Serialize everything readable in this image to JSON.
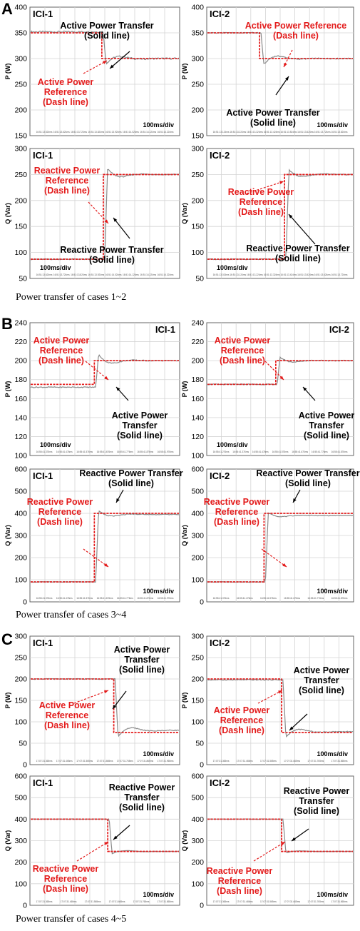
{
  "sections": [
    {
      "letter": "A",
      "caption": "Power transfer of cases 1~2"
    },
    {
      "letter": "B",
      "caption": "Power transfer of cases 3~4"
    },
    {
      "letter": "C",
      "caption": "Power transfer of cases 4~5"
    }
  ],
  "colors": {
    "reference": "#e31b1b",
    "transfer": "#8a8a8a",
    "grid": "#d4d4d4",
    "axis": "#000000"
  },
  "chart_data": [
    {
      "type": "line",
      "panel": "A-top-left",
      "id_label": "ICI-1",
      "ylabel": "P (W)",
      "ylim": [
        150,
        400
      ],
      "yticks": [
        150,
        200,
        250,
        300,
        350,
        400
      ],
      "time_division": "100ms/div",
      "x_tick_labels": [
        "16:51:13.524ms",
        "16:51:13.624ms",
        "16:51:13.724ms",
        "16:51:13.824ms",
        "16:51:13.924ms",
        "16:51:14.024ms",
        "16:51:14.124ms",
        "16:51:14.224ms"
      ],
      "step_at": 0.48,
      "reference": {
        "before": 350,
        "after": 300
      },
      "transfer": {
        "before": 352,
        "after": 300,
        "overshoot": 283,
        "noise": 3
      },
      "annotations": [
        {
          "lines": [
            "Active Power Transfer",
            "(Solid line)"
          ],
          "color": "black"
        },
        {
          "lines": [
            "Active Power",
            "Reference",
            "(Dash line)"
          ],
          "color": "red"
        }
      ]
    },
    {
      "type": "line",
      "panel": "A-top-right",
      "id_label": "ICI-2",
      "ylabel": "P (W)",
      "ylim": [
        150,
        400
      ],
      "yticks": [
        150,
        200,
        250,
        300,
        350,
        400
      ],
      "time_division": "100ms/div",
      "x_tick_labels": [
        "16:51:13.124ms",
        "16:51:13.224ms",
        "16:51:13.324ms",
        "16:51:13.424ms",
        "16:51:13.524ms",
        "16:51:13.624ms",
        "16:51:13.724ms",
        "16:51:13.824ms"
      ],
      "step_at": 0.36,
      "reference": {
        "before": 350,
        "after": 300
      },
      "transfer": {
        "before": 350,
        "after": 300,
        "overshoot": 280,
        "noise": 2
      },
      "annotations": [
        {
          "lines": [
            "Active Power Reference",
            "(Dash line)"
          ],
          "color": "red"
        },
        {
          "lines": [
            "Active Power Transfer",
            "(Solid line)"
          ],
          "color": "black"
        }
      ]
    },
    {
      "type": "line",
      "panel": "A-bottom-left",
      "id_label": "ICI-1",
      "ylabel": "Q (Var)",
      "ylim": [
        50,
        300
      ],
      "yticks": [
        50,
        100,
        150,
        200,
        250,
        300
      ],
      "time_division": "100ms/div",
      "x_tick_labels": [
        "16:51:13.624ms",
        "16:51:13.724ms",
        "16:51:13.824ms",
        "16:51:13.924ms",
        "16:51:14.024ms",
        "16:51:14.124ms",
        "16:51:14.224ms",
        "16:51:14.324ms"
      ],
      "step_at": 0.49,
      "reference": {
        "before": 87,
        "after": 250
      },
      "transfer": {
        "before": 87,
        "after": 250,
        "overshoot": 268,
        "noise": 2
      },
      "annotations": [
        {
          "lines": [
            "Reactive Power",
            "Reference",
            "(Dash line)"
          ],
          "color": "red"
        },
        {
          "lines": [
            "Reactive Power Transfer",
            "(Solid line)"
          ],
          "color": "black"
        }
      ]
    },
    {
      "type": "line",
      "panel": "A-bottom-right",
      "id_label": "ICI-2",
      "ylabel": "Q (Var)",
      "ylim": [
        50,
        300
      ],
      "yticks": [
        50,
        100,
        150,
        200,
        250,
        300
      ],
      "time_division": "100ms/div",
      "x_tick_labels": [
        "16:51:13.024ms",
        "16:51:13.124ms",
        "16:51:13.224ms",
        "16:51:13.324ms",
        "16:51:13.424ms",
        "16:51:13.524ms",
        "16:51:13.624ms",
        "16:51:13.724ms"
      ],
      "step_at": 0.53,
      "reference": {
        "before": 87,
        "after": 250
      },
      "transfer": {
        "before": 87,
        "after": 250,
        "overshoot": 265,
        "noise": 2
      },
      "annotations": [
        {
          "lines": [
            "Reactive Power",
            "Reference",
            "(Dash line)"
          ],
          "color": "red"
        },
        {
          "lines": [
            "Reactive Power Transfer",
            "(Solid line)"
          ],
          "color": "black"
        }
      ]
    },
    {
      "type": "line",
      "panel": "B-top-left",
      "id_label": "ICI-1",
      "ylabel": "P (W)",
      "ylim": [
        100,
        240
      ],
      "yticks": [
        100,
        120,
        140,
        160,
        180,
        200,
        220,
        240
      ],
      "time_division": "100ms/div",
      "x_tick_labels": [
        "16:55:41.376ms",
        "16:55:41.476ms",
        "16:55:41.576ms",
        "16:55:41.676ms",
        "16:55:41.776ms",
        "16:55:41.876ms",
        "16:55:41.976ms"
      ],
      "step_at": 0.43,
      "reference": {
        "before": 175,
        "after": 200
      },
      "transfer": {
        "before": 172,
        "after": 200,
        "overshoot": 211,
        "noise": 1
      },
      "annotations": [
        {
          "lines": [
            "Active Power",
            "Reference",
            "(Dash line)"
          ],
          "color": "red"
        },
        {
          "lines": [
            "Active Power",
            "Transfer",
            "(Solid line)"
          ],
          "color": "black"
        }
      ]
    },
    {
      "type": "line",
      "panel": "B-top-right",
      "id_label": "ICI-2",
      "ylabel": "P (W)",
      "ylim": [
        100,
        240
      ],
      "yticks": [
        100,
        120,
        140,
        160,
        180,
        200,
        220,
        240
      ],
      "time_division": "100ms/div",
      "x_tick_labels": [
        "16:55:41.276ms",
        "16:55:41.376ms",
        "16:55:41.476ms",
        "16:55:41.576ms",
        "16:55:41.676ms",
        "16:55:41.776ms",
        "16:55:41.876ms"
      ],
      "step_at": 0.47,
      "reference": {
        "before": 175,
        "after": 200
      },
      "transfer": {
        "before": 175,
        "after": 200,
        "overshoot": 206,
        "noise": 1
      },
      "annotations": [
        {
          "lines": [
            "Active Power",
            "Reference",
            "(Dash line)"
          ],
          "color": "red"
        },
        {
          "lines": [
            "Active Power",
            "Transfer",
            "(Solid line)"
          ],
          "color": "black"
        }
      ]
    },
    {
      "type": "line",
      "panel": "B-bottom-left",
      "id_label": "ICI-1",
      "ylabel": "Q (Var)",
      "ylim": [
        0,
        600
      ],
      "yticks": [
        0,
        100,
        200,
        300,
        400,
        500,
        600
      ],
      "time_division": "100ms/div",
      "x_tick_labels": [
        "16:55:41.376ms",
        "16:55:41.476ms",
        "16:55:41.576ms",
        "16:55:41.676ms",
        "16:55:41.776ms",
        "16:55:41.876ms",
        "16:55:41.976ms"
      ],
      "step_at": 0.43,
      "reference": {
        "before": 90,
        "after": 400
      },
      "transfer": {
        "before": 90,
        "after": 395,
        "overshoot": 425,
        "noise": 3
      },
      "annotations": [
        {
          "lines": [
            "Reactive Power Transfer",
            "(Solid line)"
          ],
          "color": "black"
        },
        {
          "lines": [
            "Reactive Power",
            "Reference",
            "(Dash line)"
          ],
          "color": "red"
        }
      ]
    },
    {
      "type": "line",
      "panel": "B-bottom-right",
      "id_label": "ICI-2",
      "ylabel": "Q (Var)",
      "ylim": [
        0,
        600
      ],
      "yticks": [
        0,
        100,
        200,
        300,
        400,
        500,
        600
      ],
      "time_division": "100ms/div",
      "x_tick_labels": [
        "16:55:41.376ms",
        "16:55:41.476ms",
        "16:55:41.576ms",
        "16:55:41.676ms",
        "16:55:41.776ms",
        "16:55:41.876ms"
      ],
      "step_at": 0.39,
      "reference": {
        "before": 90,
        "after": 400
      },
      "transfer": {
        "before": 90,
        "after": 390,
        "overshoot": 410,
        "noise": 3
      },
      "annotations": [
        {
          "lines": [
            "Reactive Power Transfer",
            "(Solid line)"
          ],
          "color": "black"
        },
        {
          "lines": [
            "Reactive Power",
            "Reference",
            "(Dash line)"
          ],
          "color": "red"
        }
      ]
    },
    {
      "type": "line",
      "panel": "C-top-left",
      "id_label": "ICI-1",
      "ylabel": "P (W)",
      "ylim": [
        0,
        300
      ],
      "yticks": [
        0,
        50,
        100,
        150,
        200,
        250,
        300
      ],
      "time_division": "100ms/div",
      "x_tick_labels": [
        "17:07:31.365ms",
        "17:07:31.465ms",
        "17:07:31.565ms",
        "17:07:31.665ms",
        "17:07:31.765ms",
        "17:07:31.865ms",
        "17:07:31.965ms"
      ],
      "step_at": 0.56,
      "reference": {
        "before": 200,
        "after": 75
      },
      "transfer": {
        "before": 200,
        "after": 80,
        "overshoot": 55,
        "noise": 2
      },
      "annotations": [
        {
          "lines": [
            "Active Power",
            "Transfer",
            "(Solid line)"
          ],
          "color": "black"
        },
        {
          "lines": [
            "Active Power",
            "Reference",
            "(Dash line)"
          ],
          "color": "red"
        }
      ]
    },
    {
      "type": "line",
      "panel": "C-top-right",
      "id_label": "ICI-2",
      "ylabel": "P (W)",
      "ylim": [
        0,
        300
      ],
      "yticks": [
        0,
        50,
        100,
        150,
        200,
        250,
        300
      ],
      "time_division": "100ms/div",
      "x_tick_labels": [
        "17:07:31.365ms",
        "17:07:31.465ms",
        "17:07:31.565ms",
        "17:07:31.665ms",
        "17:07:31.765ms",
        "17:07:31.865ms"
      ],
      "step_at": 0.51,
      "reference": {
        "before": 200,
        "after": 75
      },
      "transfer": {
        "before": 198,
        "after": 77,
        "overshoot": 55,
        "noise": 2
      },
      "annotations": [
        {
          "lines": [
            "Active Power",
            "Transfer",
            "(Solid line)"
          ],
          "color": "black"
        },
        {
          "lines": [
            "Active Power",
            "Reference",
            "(Dash line)"
          ],
          "color": "red"
        }
      ]
    },
    {
      "type": "line",
      "panel": "C-bottom-left",
      "id_label": "ICI-1",
      "ylabel": "Q (Var)",
      "ylim": [
        0,
        600
      ],
      "yticks": [
        0,
        100,
        200,
        300,
        400,
        500,
        600
      ],
      "time_division": "100ms/div",
      "x_tick_labels": [
        "17:07:31.365ms",
        "17:07:31.465ms",
        "17:07:31.565ms",
        "17:07:31.665ms",
        "17:07:31.765ms",
        "17:07:31.865ms"
      ],
      "step_at": 0.52,
      "reference": {
        "before": 400,
        "after": 250
      },
      "transfer": {
        "before": 400,
        "after": 250,
        "overshoot": 232,
        "noise": 2
      },
      "annotations": [
        {
          "lines": [
            "Reactive Power",
            "Transfer",
            "(Solid line)"
          ],
          "color": "black"
        },
        {
          "lines": [
            "Reactive Power",
            "Reference",
            "(Dash line)"
          ],
          "color": "red"
        }
      ]
    },
    {
      "type": "line",
      "panel": "C-bottom-right",
      "id_label": "ICI-2",
      "ylabel": "Q (Var)",
      "ylim": [
        0,
        600
      ],
      "yticks": [
        0,
        100,
        200,
        300,
        400,
        500,
        600
      ],
      "time_division": "100ms/div",
      "x_tick_labels": [
        "17:07:31.365ms",
        "17:07:31.465ms",
        "17:07:31.565ms",
        "17:07:31.665ms",
        "17:07:31.765ms",
        "17:07:31.865ms"
      ],
      "step_at": 0.51,
      "reference": {
        "before": 400,
        "after": 250
      },
      "transfer": {
        "before": 400,
        "after": 250,
        "overshoot": 240,
        "noise": 2
      },
      "annotations": [
        {
          "lines": [
            "Reactive Power",
            "Transfer",
            "(Solid line)"
          ],
          "color": "black"
        },
        {
          "lines": [
            "Reactive Power",
            "Reference",
            "(Dash line)"
          ],
          "color": "red"
        }
      ]
    }
  ]
}
